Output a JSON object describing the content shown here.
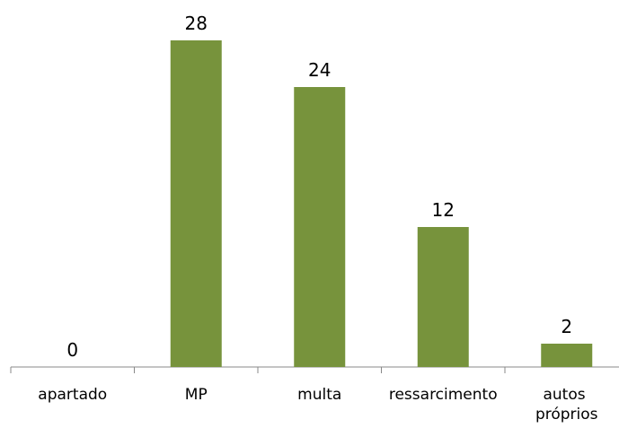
{
  "chart_data": {
    "type": "bar",
    "categories": [
      "apartado",
      "MP",
      "multa",
      "ressarcimento",
      "autos próprios"
    ],
    "values": [
      0,
      28,
      24,
      12,
      2
    ],
    "color": "#77933c",
    "ylim": [
      0,
      30
    ],
    "grid": false
  }
}
